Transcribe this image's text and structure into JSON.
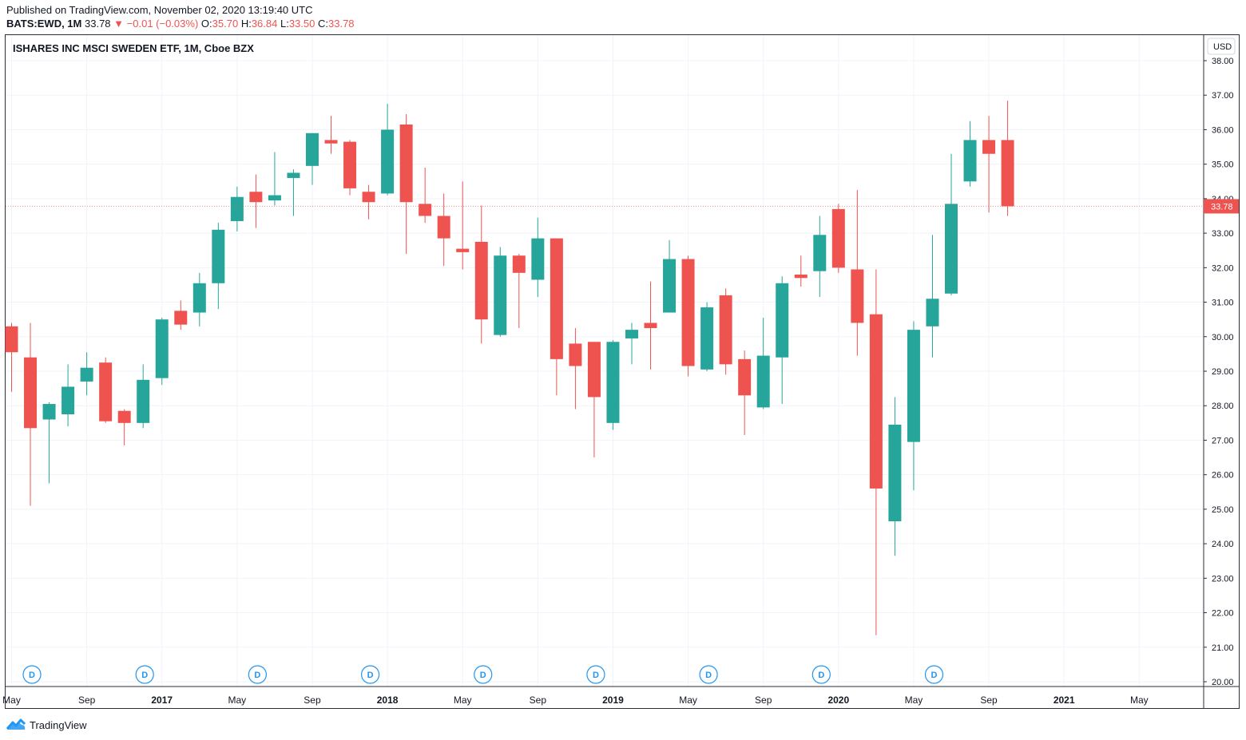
{
  "header": {
    "published": "Published on TradingView.com, November 02, 2020 13:19:40 UTC",
    "symbol": "BATS:EWD, 1M",
    "last": "33.78",
    "change": "▼ −0.01 (−0.03%)",
    "o_label": "O:",
    "o": "35.70",
    "h_label": "H:",
    "h": "36.84",
    "l_label": "L:",
    "l": "33.50",
    "c_label": "C:",
    "c": "33.78"
  },
  "footer": {
    "brand": "TradingView"
  },
  "colors": {
    "up": "#26a69a",
    "down": "#ef5350",
    "grid": "#f0f3fa",
    "axis": "#2a2e39",
    "event": "#2196f3"
  },
  "chart_data": {
    "type": "candlestick",
    "title": "ISHARES INC MSCI SWEDEN ETF, 1M, Cboe BZX",
    "currency": "USD",
    "ylim": [
      20,
      38
    ],
    "yticks": [
      "20.00",
      "21.00",
      "22.00",
      "23.00",
      "24.00",
      "25.00",
      "26.00",
      "27.00",
      "28.00",
      "29.00",
      "30.00",
      "31.00",
      "32.00",
      "33.00",
      "34.00",
      "35.00",
      "36.00",
      "37.00",
      "38.00"
    ],
    "last_price_label": "33.78",
    "x_labels": [
      {
        "label": "May",
        "month": "2016-05"
      },
      {
        "label": "Sep",
        "month": "2016-09"
      },
      {
        "label": "2017",
        "month": "2017-01"
      },
      {
        "label": "May",
        "month": "2017-05"
      },
      {
        "label": "Sep",
        "month": "2017-09"
      },
      {
        "label": "2018",
        "month": "2018-01"
      },
      {
        "label": "May",
        "month": "2018-05"
      },
      {
        "label": "Sep",
        "month": "2018-09"
      },
      {
        "label": "2019",
        "month": "2019-01"
      },
      {
        "label": "May",
        "month": "2019-05"
      },
      {
        "label": "Sep",
        "month": "2019-09"
      },
      {
        "label": "2020",
        "month": "2020-01"
      },
      {
        "label": "May",
        "month": "2020-05"
      },
      {
        "label": "Sep",
        "month": "2020-09"
      },
      {
        "label": "2021",
        "month": "2021-01"
      },
      {
        "label": "May",
        "month": "2021-05"
      }
    ],
    "dividend_marker": "D",
    "dividend_months": [
      "2016-06",
      "2016-12",
      "2017-06",
      "2017-12",
      "2018-06",
      "2018-12",
      "2019-06",
      "2019-12",
      "2020-06"
    ],
    "candles": [
      {
        "month": "2016-05",
        "o": 30.3,
        "h": 30.4,
        "l": 28.4,
        "c": 29.55
      },
      {
        "month": "2016-06",
        "o": 29.4,
        "h": 30.4,
        "l": 25.1,
        "c": 27.35
      },
      {
        "month": "2016-07",
        "o": 27.6,
        "h": 28.1,
        "l": 25.75,
        "c": 28.05
      },
      {
        "month": "2016-08",
        "o": 27.75,
        "h": 29.2,
        "l": 27.4,
        "c": 28.55
      },
      {
        "month": "2016-09",
        "o": 28.7,
        "h": 29.55,
        "l": 28.3,
        "c": 29.1
      },
      {
        "month": "2016-10",
        "o": 29.25,
        "h": 29.4,
        "l": 27.5,
        "c": 27.55
      },
      {
        "month": "2016-11",
        "o": 27.85,
        "h": 27.9,
        "l": 26.85,
        "c": 27.5
      },
      {
        "month": "2016-12",
        "o": 27.5,
        "h": 29.2,
        "l": 27.35,
        "c": 28.75
      },
      {
        "month": "2017-01",
        "o": 28.8,
        "h": 30.55,
        "l": 28.6,
        "c": 30.5
      },
      {
        "month": "2017-02",
        "o": 30.75,
        "h": 31.05,
        "l": 30.2,
        "c": 30.35
      },
      {
        "month": "2017-03",
        "o": 30.7,
        "h": 31.85,
        "l": 30.3,
        "c": 31.55
      },
      {
        "month": "2017-04",
        "o": 31.55,
        "h": 33.3,
        "l": 30.8,
        "c": 33.1
      },
      {
        "month": "2017-05",
        "o": 33.35,
        "h": 34.35,
        "l": 33.05,
        "c": 34.05
      },
      {
        "month": "2017-06",
        "o": 34.2,
        "h": 34.7,
        "l": 33.15,
        "c": 33.9
      },
      {
        "month": "2017-07",
        "o": 33.95,
        "h": 35.35,
        "l": 33.8,
        "c": 34.1
      },
      {
        "month": "2017-08",
        "o": 34.6,
        "h": 34.85,
        "l": 33.5,
        "c": 34.75
      },
      {
        "month": "2017-09",
        "o": 34.95,
        "h": 35.9,
        "l": 34.4,
        "c": 35.9
      },
      {
        "month": "2017-10",
        "o": 35.7,
        "h": 36.4,
        "l": 35.3,
        "c": 35.6
      },
      {
        "month": "2017-11",
        "o": 35.65,
        "h": 35.7,
        "l": 34.1,
        "c": 34.3
      },
      {
        "month": "2017-12",
        "o": 34.2,
        "h": 34.4,
        "l": 33.4,
        "c": 33.9
      },
      {
        "month": "2017-12b",
        "o": 34.15,
        "h": 36.75,
        "l": 34.1,
        "c": 36.0
      },
      {
        "month": "2018-02",
        "o": 36.15,
        "h": 36.45,
        "l": 32.4,
        "c": 33.9
      },
      {
        "month": "2018-03",
        "o": 33.85,
        "h": 34.9,
        "l": 33.3,
        "c": 33.5
      },
      {
        "month": "2018-04",
        "o": 33.5,
        "h": 34.15,
        "l": 32.05,
        "c": 32.85
      },
      {
        "month": "2018-05",
        "o": 32.55,
        "h": 34.5,
        "l": 31.95,
        "c": 32.45
      },
      {
        "month": "2018-06",
        "o": 32.75,
        "h": 33.8,
        "l": 29.8,
        "c": 30.5
      },
      {
        "month": "2018-07",
        "o": 30.05,
        "h": 32.6,
        "l": 30.0,
        "c": 32.35
      },
      {
        "month": "2018-08",
        "o": 32.35,
        "h": 32.4,
        "l": 30.25,
        "c": 31.85
      },
      {
        "month": "2018-09",
        "o": 31.65,
        "h": 33.45,
        "l": 31.15,
        "c": 32.85
      },
      {
        "month": "2018-10",
        "o": 32.85,
        "h": 32.85,
        "l": 28.3,
        "c": 29.35
      },
      {
        "month": "2018-11",
        "o": 29.8,
        "h": 30.25,
        "l": 27.9,
        "c": 29.15
      },
      {
        "month": "2018-12",
        "o": 29.85,
        "h": 29.85,
        "l": 26.5,
        "c": 28.25
      },
      {
        "month": "2019-01",
        "o": 27.5,
        "h": 29.9,
        "l": 27.3,
        "c": 29.85
      },
      {
        "month": "2019-02",
        "o": 29.95,
        "h": 30.4,
        "l": 29.2,
        "c": 30.2
      },
      {
        "month": "2019-03",
        "o": 30.4,
        "h": 31.6,
        "l": 29.05,
        "c": 30.25
      },
      {
        "month": "2019-04",
        "o": 30.7,
        "h": 32.8,
        "l": 30.7,
        "c": 32.25
      },
      {
        "month": "2019-05",
        "o": 32.25,
        "h": 32.35,
        "l": 28.85,
        "c": 29.15
      },
      {
        "month": "2019-06",
        "o": 29.05,
        "h": 31.0,
        "l": 29.0,
        "c": 30.85
      },
      {
        "month": "2019-07",
        "o": 31.2,
        "h": 31.4,
        "l": 28.9,
        "c": 29.2
      },
      {
        "month": "2019-08",
        "o": 29.35,
        "h": 29.6,
        "l": 27.15,
        "c": 28.3
      },
      {
        "month": "2019-09",
        "o": 27.95,
        "h": 30.55,
        "l": 27.9,
        "c": 29.45
      },
      {
        "month": "2019-10",
        "o": 29.4,
        "h": 31.75,
        "l": 28.05,
        "c": 31.55
      },
      {
        "month": "2019-11",
        "o": 31.8,
        "h": 32.35,
        "l": 31.45,
        "c": 31.7
      },
      {
        "month": "2019-12",
        "o": 31.9,
        "h": 33.5,
        "l": 31.15,
        "c": 32.95
      },
      {
        "month": "2020-01",
        "o": 33.7,
        "h": 33.85,
        "l": 31.85,
        "c": 32.0
      },
      {
        "month": "2020-02",
        "o": 31.95,
        "h": 34.25,
        "l": 29.45,
        "c": 30.4
      },
      {
        "month": "2020-03",
        "o": 30.65,
        "h": 31.95,
        "l": 21.35,
        "c": 25.6
      },
      {
        "month": "2020-04",
        "o": 24.65,
        "h": 28.25,
        "l": 23.65,
        "c": 27.45
      },
      {
        "month": "2020-05",
        "o": 26.95,
        "h": 30.45,
        "l": 25.55,
        "c": 30.2
      },
      {
        "month": "2020-06",
        "o": 30.3,
        "h": 32.95,
        "l": 29.4,
        "c": 31.1
      },
      {
        "month": "2020-07",
        "o": 31.25,
        "h": 35.3,
        "l": 31.2,
        "c": 33.85
      },
      {
        "month": "2020-08",
        "o": 34.5,
        "h": 36.25,
        "l": 34.35,
        "c": 35.7
      },
      {
        "month": "2020-09",
        "o": 35.7,
        "h": 36.4,
        "l": 33.6,
        "c": 35.3
      },
      {
        "month": "2020-10",
        "o": 35.7,
        "h": 36.84,
        "l": 33.5,
        "c": 33.78
      }
    ]
  }
}
